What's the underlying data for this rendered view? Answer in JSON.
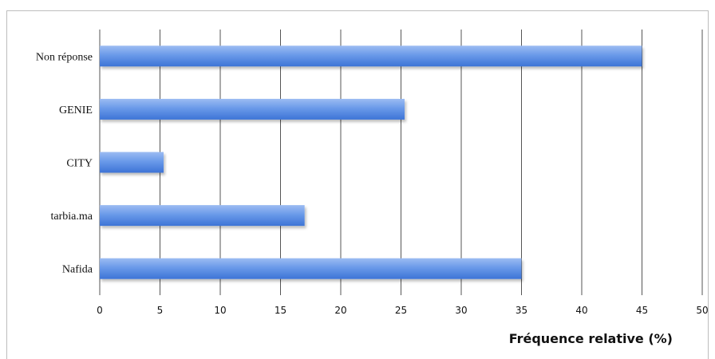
{
  "chart_data": {
    "type": "bar",
    "orientation": "horizontal",
    "categories": [
      "Non réponse",
      "GENIE",
      "CITY",
      "tarbia.ma",
      "Nafida"
    ],
    "values": [
      45,
      25.3,
      5.3,
      17,
      35
    ],
    "xlabel": "Fréquence relative (%)",
    "ylabel": "",
    "title": "",
    "xlim": [
      0,
      50
    ],
    "xticks": [
      0,
      5,
      10,
      15,
      20,
      25,
      30,
      35,
      40,
      45,
      50
    ],
    "xtick_labels": [
      "0",
      "5",
      "10",
      "15",
      "20",
      "25",
      "30",
      "35",
      "40",
      "45",
      "50"
    ],
    "grid": true,
    "legend": "none",
    "bar_color": "#5b8fe6"
  }
}
